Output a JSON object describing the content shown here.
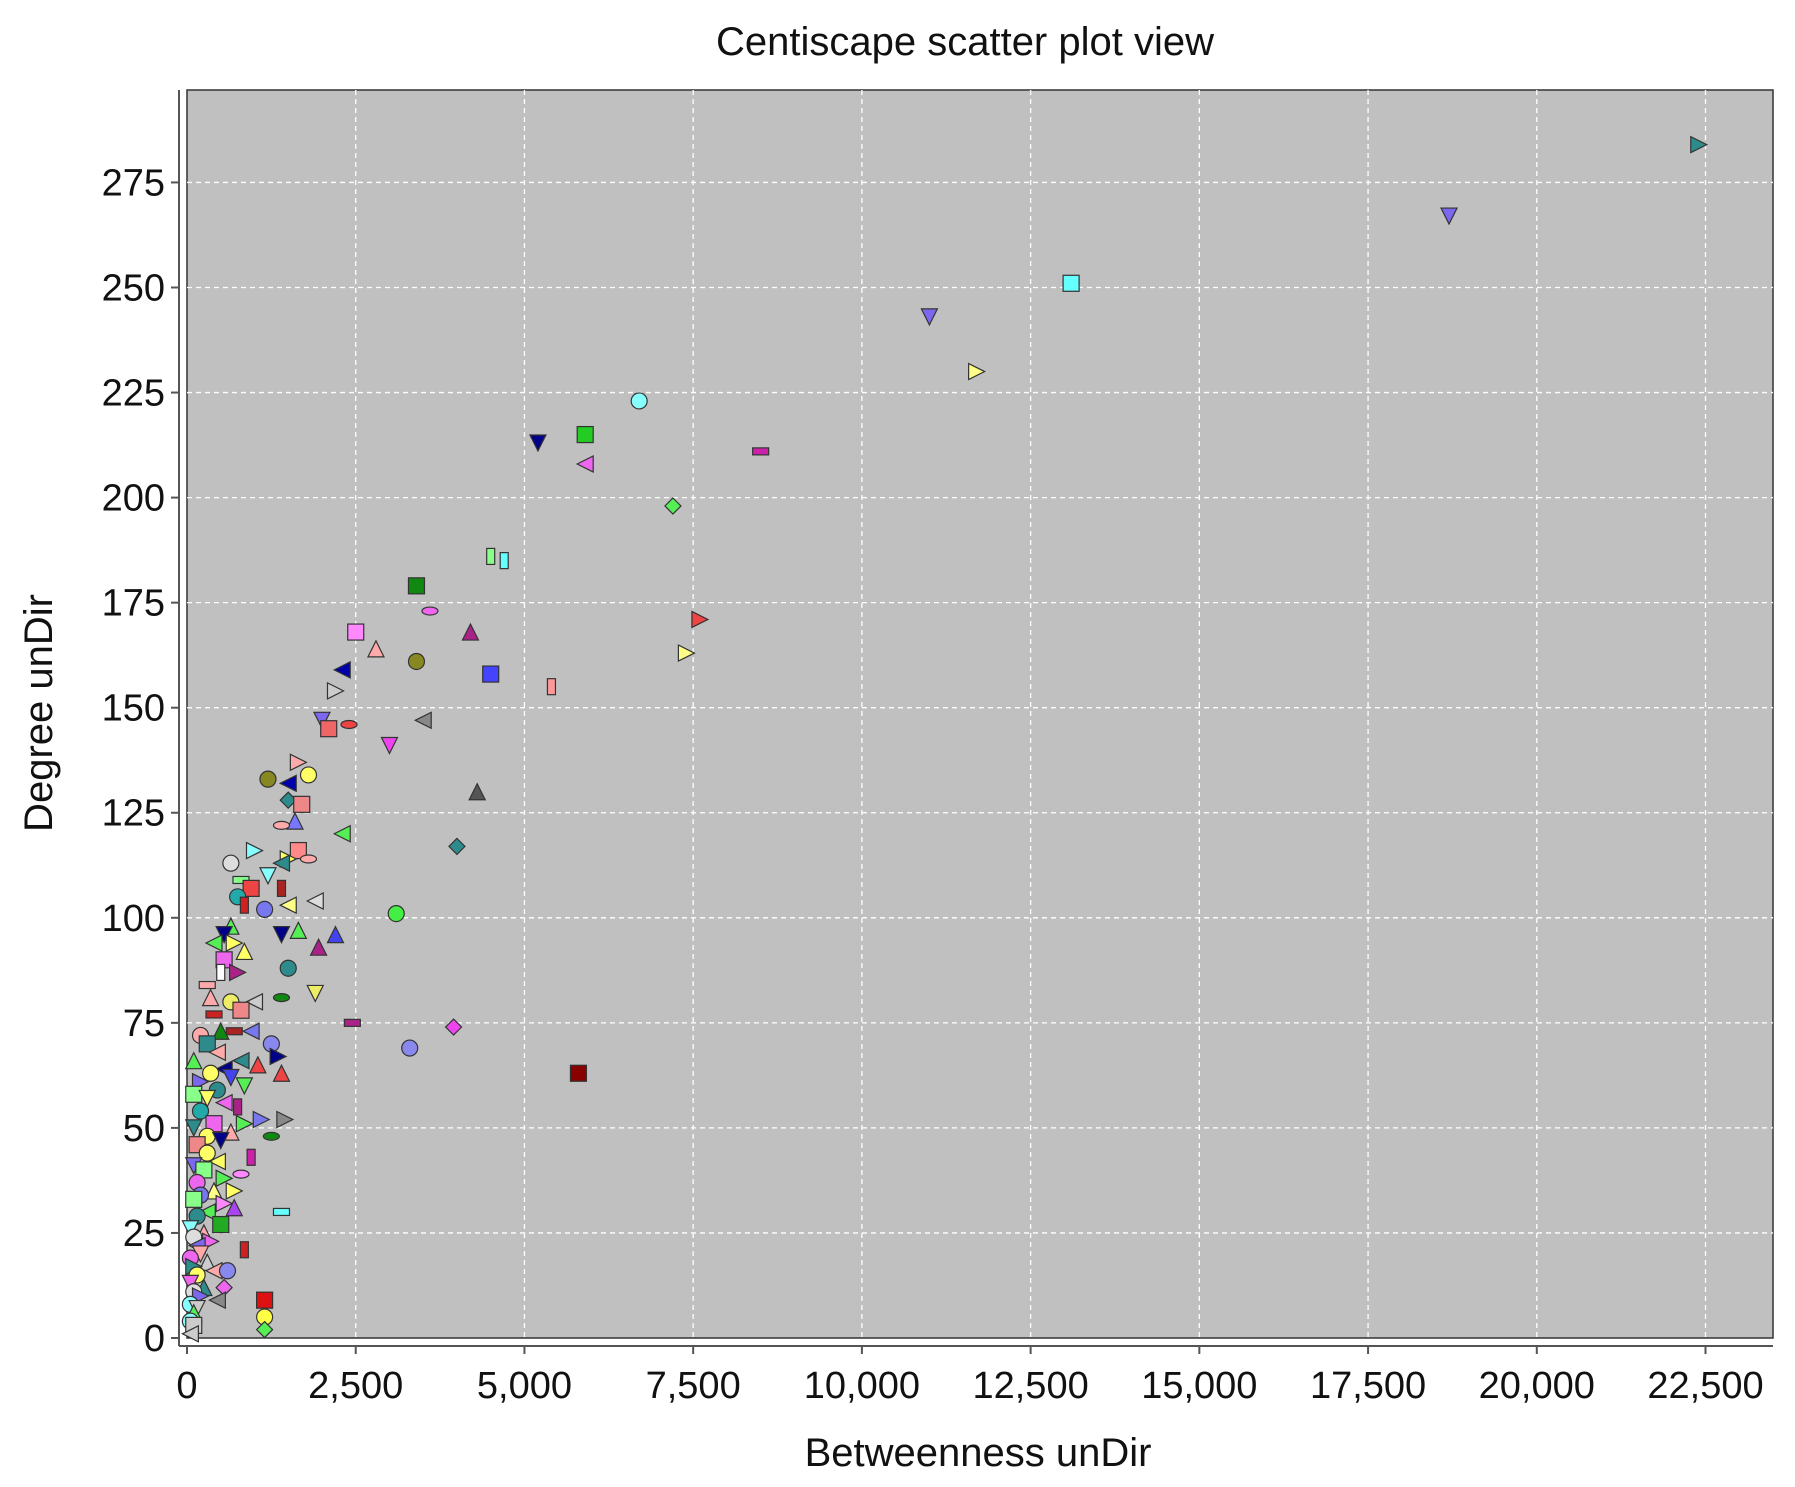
{
  "chart_data": {
    "type": "scatter",
    "title": "Centiscape scatter plot view",
    "xlabel": "Betweenness unDir",
    "ylabel": "Degree unDir",
    "xlim": [
      0,
      23500
    ],
    "ylim": [
      0,
      297
    ],
    "x_ticks": [
      0,
      2500,
      5000,
      7500,
      10000,
      12500,
      15000,
      17500,
      20000,
      22500
    ],
    "x_tick_labels": [
      "0",
      "2,500",
      "5,000",
      "7,500",
      "10,000",
      "12,500",
      "15,000",
      "17,500",
      "20,000",
      "22,500"
    ],
    "y_ticks": [
      0,
      25,
      50,
      75,
      100,
      125,
      150,
      175,
      200,
      225,
      250,
      275
    ],
    "y_tick_labels": [
      "0",
      "25",
      "50",
      "75",
      "100",
      "125",
      "150",
      "175",
      "200",
      "225",
      "250",
      "275"
    ],
    "grid": true,
    "legend": "none",
    "plot_background": "#c0c0c0",
    "points": [
      {
        "x": 22400,
        "y": 284,
        "shape": "tri-right",
        "color": "#2e8b8b"
      },
      {
        "x": 18700,
        "y": 267,
        "shape": "tri-down",
        "color": "#7b68ee"
      },
      {
        "x": 13100,
        "y": 251,
        "shape": "square",
        "color": "#66ffff"
      },
      {
        "x": 11000,
        "y": 243,
        "shape": "tri-down",
        "color": "#7b68ee"
      },
      {
        "x": 11700,
        "y": 230,
        "shape": "tri-right",
        "color": "#ffff88"
      },
      {
        "x": 6700,
        "y": 223,
        "shape": "circle",
        "color": "#88ffff"
      },
      {
        "x": 5200,
        "y": 213,
        "shape": "tri-down",
        "color": "#000088"
      },
      {
        "x": 5900,
        "y": 215,
        "shape": "square",
        "color": "#22cc22"
      },
      {
        "x": 5900,
        "y": 208,
        "shape": "tri-left",
        "color": "#ee66ee"
      },
      {
        "x": 8500,
        "y": 211,
        "shape": "bar-h",
        "color": "#cc22aa"
      },
      {
        "x": 7200,
        "y": 198,
        "shape": "diamond",
        "color": "#55ee55"
      },
      {
        "x": 4500,
        "y": 186,
        "shape": "bar-v",
        "color": "#88ff88"
      },
      {
        "x": 4700,
        "y": 185,
        "shape": "bar-v",
        "color": "#66ffff"
      },
      {
        "x": 3400,
        "y": 179,
        "shape": "square",
        "color": "#118811"
      },
      {
        "x": 3600,
        "y": 173,
        "shape": "ellipse-h",
        "color": "#ee66ee"
      },
      {
        "x": 7600,
        "y": 171,
        "shape": "tri-right",
        "color": "#ee4444"
      },
      {
        "x": 2500,
        "y": 168,
        "shape": "square",
        "color": "#ff88ff"
      },
      {
        "x": 4200,
        "y": 168,
        "shape": "tri-up",
        "color": "#aa2288"
      },
      {
        "x": 2800,
        "y": 164,
        "shape": "tri-up",
        "color": "#ffaaaa"
      },
      {
        "x": 3400,
        "y": 161,
        "shape": "circle",
        "color": "#888822"
      },
      {
        "x": 7400,
        "y": 163,
        "shape": "tri-right",
        "color": "#ffff88"
      },
      {
        "x": 4500,
        "y": 158,
        "shape": "square",
        "color": "#4444ff"
      },
      {
        "x": 5400,
        "y": 155,
        "shape": "bar-v",
        "color": "#ff9999"
      },
      {
        "x": 2300,
        "y": 159,
        "shape": "tri-left",
        "color": "#0000aa"
      },
      {
        "x": 2200,
        "y": 154,
        "shape": "tri-right",
        "color": "#cccccc"
      },
      {
        "x": 3500,
        "y": 147,
        "shape": "tri-left",
        "color": "#888888"
      },
      {
        "x": 2000,
        "y": 147,
        "shape": "tri-down",
        "color": "#7b68ee"
      },
      {
        "x": 2100,
        "y": 145,
        "shape": "square",
        "color": "#ee6666"
      },
      {
        "x": 2400,
        "y": 146,
        "shape": "ellipse-h",
        "color": "#ee4444"
      },
      {
        "x": 3000,
        "y": 141,
        "shape": "tri-down",
        "color": "#ee44ee"
      },
      {
        "x": 1650,
        "y": 137,
        "shape": "tri-right",
        "color": "#ffaaaa"
      },
      {
        "x": 1800,
        "y": 134,
        "shape": "circle",
        "color": "#ffff66"
      },
      {
        "x": 1200,
        "y": 133,
        "shape": "circle",
        "color": "#888822"
      },
      {
        "x": 1500,
        "y": 132,
        "shape": "tri-left",
        "color": "#0000aa"
      },
      {
        "x": 4300,
        "y": 130,
        "shape": "tri-up",
        "color": "#555555"
      },
      {
        "x": 1500,
        "y": 128,
        "shape": "diamond",
        "color": "#2e8b8b"
      },
      {
        "x": 1700,
        "y": 127,
        "shape": "square",
        "color": "#ee8888"
      },
      {
        "x": 1600,
        "y": 123,
        "shape": "tri-up",
        "color": "#7777ff"
      },
      {
        "x": 1400,
        "y": 122,
        "shape": "ellipse-h",
        "color": "#ffaaaa"
      },
      {
        "x": 2300,
        "y": 120,
        "shape": "tri-left",
        "color": "#55ee55"
      },
      {
        "x": 4000,
        "y": 117,
        "shape": "diamond",
        "color": "#2e8b8b"
      },
      {
        "x": 1000,
        "y": 116,
        "shape": "tri-right",
        "color": "#88ffff"
      },
      {
        "x": 1650,
        "y": 116,
        "shape": "square",
        "color": "#ff8888"
      },
      {
        "x": 1800,
        "y": 114,
        "shape": "ellipse-h",
        "color": "#ffaaaa"
      },
      {
        "x": 1500,
        "y": 114,
        "shape": "tri-right",
        "color": "#ffff66"
      },
      {
        "x": 1400,
        "y": 113,
        "shape": "tri-left",
        "color": "#2e8b8b"
      },
      {
        "x": 650,
        "y": 113,
        "shape": "circle",
        "color": "#dddddd"
      },
      {
        "x": 1200,
        "y": 110,
        "shape": "tri-down",
        "color": "#88ffff"
      },
      {
        "x": 800,
        "y": 109,
        "shape": "bar-h",
        "color": "#88ff88"
      },
      {
        "x": 950,
        "y": 107,
        "shape": "square",
        "color": "#ee4444"
      },
      {
        "x": 1400,
        "y": 107,
        "shape": "bar-v",
        "color": "#aa2222"
      },
      {
        "x": 750,
        "y": 105,
        "shape": "circle",
        "color": "#22aaaa"
      },
      {
        "x": 1900,
        "y": 104,
        "shape": "tri-left",
        "color": "#dddddd"
      },
      {
        "x": 1500,
        "y": 103,
        "shape": "tri-left",
        "color": "#ffff88"
      },
      {
        "x": 1150,
        "y": 102,
        "shape": "circle",
        "color": "#7777ee"
      },
      {
        "x": 850,
        "y": 103,
        "shape": "bar-v",
        "color": "#cc2222"
      },
      {
        "x": 3100,
        "y": 101,
        "shape": "circle",
        "color": "#44ee44"
      },
      {
        "x": 650,
        "y": 98,
        "shape": "tri-up",
        "color": "#55ee55"
      },
      {
        "x": 1650,
        "y": 97,
        "shape": "tri-up",
        "color": "#55ee55"
      },
      {
        "x": 2200,
        "y": 96,
        "shape": "tri-up",
        "color": "#4444ee"
      },
      {
        "x": 1400,
        "y": 96,
        "shape": "tri-down",
        "color": "#000088"
      },
      {
        "x": 550,
        "y": 96,
        "shape": "tri-down",
        "color": "#000088"
      },
      {
        "x": 400,
        "y": 94,
        "shape": "tri-left",
        "color": "#55ee55"
      },
      {
        "x": 700,
        "y": 94,
        "shape": "tri-right",
        "color": "#ffff66"
      },
      {
        "x": 1950,
        "y": 93,
        "shape": "tri-up",
        "color": "#aa2288"
      },
      {
        "x": 850,
        "y": 92,
        "shape": "tri-up",
        "color": "#ffff66"
      },
      {
        "x": 550,
        "y": 90,
        "shape": "square",
        "color": "#ee66ee"
      },
      {
        "x": 1500,
        "y": 88,
        "shape": "circle",
        "color": "#2e8b8b"
      },
      {
        "x": 500,
        "y": 87,
        "shape": "bar-v",
        "color": "#ffffff"
      },
      {
        "x": 750,
        "y": 87,
        "shape": "tri-right",
        "color": "#aa2288"
      },
      {
        "x": 300,
        "y": 84,
        "shape": "bar-h",
        "color": "#ffaaaa"
      },
      {
        "x": 1900,
        "y": 82,
        "shape": "tri-down",
        "color": "#eeee66"
      },
      {
        "x": 1400,
        "y": 81,
        "shape": "ellipse-h",
        "color": "#118811"
      },
      {
        "x": 350,
        "y": 81,
        "shape": "tri-up",
        "color": "#ffaaaa"
      },
      {
        "x": 650,
        "y": 80,
        "shape": "circle",
        "color": "#eeee66"
      },
      {
        "x": 1000,
        "y": 80,
        "shape": "tri-left",
        "color": "#cccccc"
      },
      {
        "x": 800,
        "y": 78,
        "shape": "square",
        "color": "#ee8888"
      },
      {
        "x": 400,
        "y": 77,
        "shape": "bar-h",
        "color": "#cc2222"
      },
      {
        "x": 2450,
        "y": 75,
        "shape": "bar-h",
        "color": "#aa2288"
      },
      {
        "x": 3950,
        "y": 74,
        "shape": "diamond",
        "color": "#ee44ee"
      },
      {
        "x": 500,
        "y": 73,
        "shape": "tri-up",
        "color": "#118811"
      },
      {
        "x": 700,
        "y": 73,
        "shape": "bar-h",
        "color": "#aa2222"
      },
      {
        "x": 950,
        "y": 73,
        "shape": "tri-left",
        "color": "#7777ee"
      },
      {
        "x": 200,
        "y": 72,
        "shape": "circle",
        "color": "#ffaaaa"
      },
      {
        "x": 300,
        "y": 70,
        "shape": "square",
        "color": "#2e8b8b"
      },
      {
        "x": 1250,
        "y": 70,
        "shape": "circle",
        "color": "#8888ee"
      },
      {
        "x": 3300,
        "y": 69,
        "shape": "circle",
        "color": "#8888ee"
      },
      {
        "x": 450,
        "y": 68,
        "shape": "tri-left",
        "color": "#ffaaaa"
      },
      {
        "x": 1350,
        "y": 67,
        "shape": "tri-right",
        "color": "#000088"
      },
      {
        "x": 100,
        "y": 66,
        "shape": "tri-up",
        "color": "#55ee55"
      },
      {
        "x": 800,
        "y": 66,
        "shape": "tri-left",
        "color": "#2e8b8b"
      },
      {
        "x": 1050,
        "y": 65,
        "shape": "tri-up",
        "color": "#ee4444"
      },
      {
        "x": 550,
        "y": 64,
        "shape": "tri-left",
        "color": "#000088"
      },
      {
        "x": 1400,
        "y": 63,
        "shape": "tri-up",
        "color": "#ee4444"
      },
      {
        "x": 5800,
        "y": 63,
        "shape": "square",
        "color": "#880000"
      },
      {
        "x": 350,
        "y": 63,
        "shape": "circle",
        "color": "#ffff66"
      },
      {
        "x": 650,
        "y": 62,
        "shape": "tri-down",
        "color": "#4444ee"
      },
      {
        "x": 200,
        "y": 61,
        "shape": "tri-right",
        "color": "#7b68ee"
      },
      {
        "x": 850,
        "y": 60,
        "shape": "tri-down",
        "color": "#55ee55"
      },
      {
        "x": 450,
        "y": 59,
        "shape": "circle",
        "color": "#2e8b8b"
      },
      {
        "x": 100,
        "y": 58,
        "shape": "square",
        "color": "#88ff88"
      },
      {
        "x": 300,
        "y": 57,
        "shape": "tri-down",
        "color": "#ffff66"
      },
      {
        "x": 550,
        "y": 56,
        "shape": "tri-left",
        "color": "#ee66ee"
      },
      {
        "x": 750,
        "y": 55,
        "shape": "bar-v",
        "color": "#aa2288"
      },
      {
        "x": 200,
        "y": 54,
        "shape": "circle",
        "color": "#22aaaa"
      },
      {
        "x": 1100,
        "y": 52,
        "shape": "tri-right",
        "color": "#7777ee"
      },
      {
        "x": 1450,
        "y": 52,
        "shape": "tri-right",
        "color": "#888888"
      },
      {
        "x": 850,
        "y": 51,
        "shape": "tri-right",
        "color": "#55ee55"
      },
      {
        "x": 400,
        "y": 51,
        "shape": "square",
        "color": "#ee66ee"
      },
      {
        "x": 100,
        "y": 50,
        "shape": "tri-down",
        "color": "#2e8b8b"
      },
      {
        "x": 650,
        "y": 49,
        "shape": "tri-up",
        "color": "#ffaaaa"
      },
      {
        "x": 300,
        "y": 48,
        "shape": "circle",
        "color": "#ffff66"
      },
      {
        "x": 1250,
        "y": 48,
        "shape": "ellipse-h",
        "color": "#118811"
      },
      {
        "x": 500,
        "y": 47,
        "shape": "tri-down",
        "color": "#000088"
      },
      {
        "x": 150,
        "y": 46,
        "shape": "square",
        "color": "#ee8888"
      },
      {
        "x": 300,
        "y": 44,
        "shape": "circle",
        "color": "#ffff66"
      },
      {
        "x": 950,
        "y": 43,
        "shape": "bar-v",
        "color": "#cc22aa"
      },
      {
        "x": 450,
        "y": 42,
        "shape": "tri-left",
        "color": "#ffff66"
      },
      {
        "x": 100,
        "y": 41,
        "shape": "tri-down",
        "color": "#7b68ee"
      },
      {
        "x": 250,
        "y": 40,
        "shape": "square",
        "color": "#88ff88"
      },
      {
        "x": 800,
        "y": 39,
        "shape": "ellipse-h",
        "color": "#ff88ff"
      },
      {
        "x": 550,
        "y": 38,
        "shape": "tri-right",
        "color": "#55ee55"
      },
      {
        "x": 150,
        "y": 37,
        "shape": "circle",
        "color": "#ee66ee"
      },
      {
        "x": 400,
        "y": 35,
        "shape": "tri-up",
        "color": "#ffff88"
      },
      {
        "x": 700,
        "y": 35,
        "shape": "tri-right",
        "color": "#ffff66"
      },
      {
        "x": 200,
        "y": 34,
        "shape": "circle",
        "color": "#7777ee"
      },
      {
        "x": 100,
        "y": 33,
        "shape": "square",
        "color": "#88ff88"
      },
      {
        "x": 550,
        "y": 32,
        "shape": "tri-right",
        "color": "#ff88ff"
      },
      {
        "x": 700,
        "y": 31,
        "shape": "tri-up",
        "color": "#aa44ee"
      },
      {
        "x": 1400,
        "y": 30,
        "shape": "bar-h",
        "color": "#66ffff"
      },
      {
        "x": 300,
        "y": 30,
        "shape": "tri-left",
        "color": "#55ee55"
      },
      {
        "x": 150,
        "y": 29,
        "shape": "circle",
        "color": "#2e8b8b"
      },
      {
        "x": 500,
        "y": 27,
        "shape": "square",
        "color": "#22aa22"
      },
      {
        "x": 50,
        "y": 26,
        "shape": "tri-down",
        "color": "#88ffff"
      },
      {
        "x": 250,
        "y": 25,
        "shape": "tri-up",
        "color": "#ffaaaa"
      },
      {
        "x": 100,
        "y": 24,
        "shape": "circle",
        "color": "#dddddd"
      },
      {
        "x": 350,
        "y": 23,
        "shape": "tri-right",
        "color": "#ee66ee"
      },
      {
        "x": 150,
        "y": 22,
        "shape": "tri-left",
        "color": "#7b68ee"
      },
      {
        "x": 850,
        "y": 21,
        "shape": "bar-v",
        "color": "#cc2222"
      },
      {
        "x": 200,
        "y": 20,
        "shape": "tri-down",
        "color": "#ffaaaa"
      },
      {
        "x": 50,
        "y": 19,
        "shape": "circle",
        "color": "#ee66ee"
      },
      {
        "x": 300,
        "y": 18,
        "shape": "tri-up",
        "color": "#cccccc"
      },
      {
        "x": 100,
        "y": 17,
        "shape": "tri-right",
        "color": "#2e8b8b"
      },
      {
        "x": 400,
        "y": 16,
        "shape": "tri-left",
        "color": "#ffaaaa"
      },
      {
        "x": 600,
        "y": 16,
        "shape": "circle",
        "color": "#8888ee"
      },
      {
        "x": 150,
        "y": 15,
        "shape": "circle",
        "color": "#ffff66"
      },
      {
        "x": 50,
        "y": 13,
        "shape": "tri-down",
        "color": "#ee66ee"
      },
      {
        "x": 250,
        "y": 12,
        "shape": "tri-up",
        "color": "#2e8b8b"
      },
      {
        "x": 550,
        "y": 12,
        "shape": "diamond",
        "color": "#ee66ee"
      },
      {
        "x": 100,
        "y": 11,
        "shape": "circle",
        "color": "#dddddd"
      },
      {
        "x": 200,
        "y": 10,
        "shape": "tri-right",
        "color": "#7b68ee"
      },
      {
        "x": 450,
        "y": 9,
        "shape": "tri-left",
        "color": "#888888"
      },
      {
        "x": 1150,
        "y": 9,
        "shape": "square",
        "color": "#dd1111"
      },
      {
        "x": 50,
        "y": 8,
        "shape": "circle",
        "color": "#88ffff"
      },
      {
        "x": 150,
        "y": 7,
        "shape": "tri-down",
        "color": "#cccccc"
      },
      {
        "x": 100,
        "y": 6,
        "shape": "tri-up",
        "color": "#55ee55"
      },
      {
        "x": 1150,
        "y": 5,
        "shape": "circle",
        "color": "#ffff44"
      },
      {
        "x": 50,
        "y": 4,
        "shape": "circle",
        "color": "#88ffff"
      },
      {
        "x": 100,
        "y": 3,
        "shape": "square",
        "color": "#cccccc"
      },
      {
        "x": 1150,
        "y": 2,
        "shape": "diamond",
        "color": "#55ee55"
      },
      {
        "x": 50,
        "y": 1,
        "shape": "tri-left",
        "color": "#cccccc"
      }
    ]
  }
}
